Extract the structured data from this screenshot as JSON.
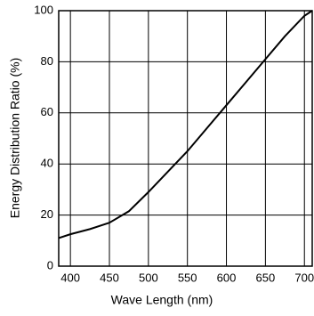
{
  "chart_data": {
    "type": "line",
    "x_label": "Wave Length (nm)",
    "y_label": "Energy Distribution Ratio (%)",
    "x": [
      385,
      400,
      425,
      450,
      475,
      500,
      525,
      550,
      575,
      600,
      625,
      650,
      675,
      700,
      710
    ],
    "series": [
      {
        "color": "#000000",
        "values": [
          11,
          12.5,
          14.5,
          17,
          21.5,
          29,
          37,
          45,
          54,
          63,
          72,
          81,
          90,
          98,
          100
        ]
      }
    ],
    "xlim": [
      385,
      710
    ],
    "ylim": [
      0,
      100
    ],
    "xticks": [
      400,
      450,
      500,
      550,
      600,
      650,
      700
    ],
    "yticks": [
      0,
      20,
      40,
      60,
      80,
      100
    ],
    "grid": true
  }
}
